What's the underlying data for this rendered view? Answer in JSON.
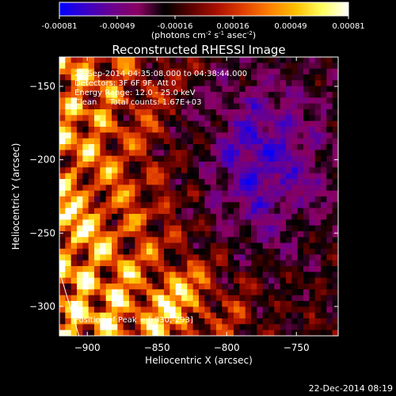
{
  "colorbar": {
    "ticks": [
      "-0.00081",
      "-0.00049",
      "-0.00016",
      "0.00016",
      "0.00049",
      "0.00081"
    ],
    "units_base": "(photons cm",
    "units_exp1": "-2",
    "units_mid": " s",
    "units_exp2": "-1",
    "units_end": " asec",
    "units_exp3": "-2",
    "units_close": ")",
    "colormap": [
      "#0000ff",
      "#3a00c8",
      "#6a008f",
      "#8a0060",
      "#000000",
      "#5a0000",
      "#aa1000",
      "#e04000",
      "#ff8000",
      "#ffc000",
      "#ffff60",
      "#ffffff"
    ]
  },
  "chart_data": {
    "type": "heatmap",
    "title": "Reconstructed RHESSI Image",
    "xlabel": "Heliocentric X (arcsec)",
    "ylabel": "Heliocentric Y (arcsec)",
    "xlim": [
      -920,
      -720
    ],
    "ylim": [
      -320,
      -130
    ],
    "x_ticks": [
      -900,
      -850,
      -800,
      -750
    ],
    "y_ticks": [
      -300,
      -250,
      -200,
      -150
    ],
    "x_tick_labels": [
      "−900",
      "−850",
      "−800",
      "−750"
    ],
    "y_tick_labels": [
      "−300",
      "−250",
      "−200",
      "−150"
    ],
    "value_range": [
      -0.00081,
      0.00081
    ],
    "peak": [
      -830,
      -293
    ],
    "annotations": [
      "22-Sep-2014 04:35:08.000 to 04:38:44.000",
      "Detectors: 3F 6F 9F, Att 0",
      "Energy Range: 12.0 - 25.0 keV",
      "Clean     Total counts: 1.67E+03"
    ],
    "peak_label": "Position of Peak = [-830,-293]",
    "limb": [
      [
        -920,
        -276
      ],
      [
        -906,
        -320
      ]
    ]
  },
  "footer": {
    "date": "22-Dec-2014 08:19"
  }
}
